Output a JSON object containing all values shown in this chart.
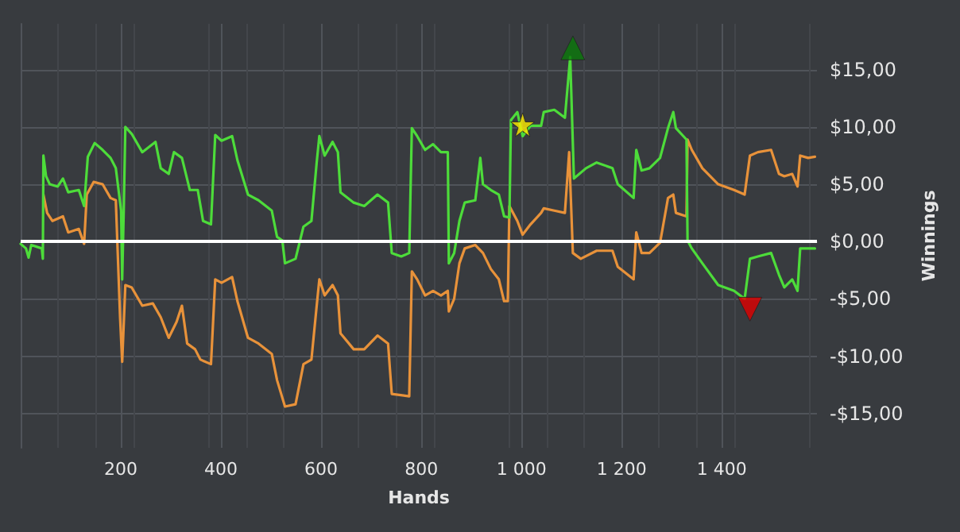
{
  "chart_data": {
    "type": "line",
    "xlabel": "Hands",
    "ylabel": "Winnings",
    "xlim": [
      0,
      1590
    ],
    "ylim": [
      -18,
      19
    ],
    "xticks": [
      200,
      400,
      600,
      800,
      {
        "value": 1000,
        "label": "1 000"
      },
      {
        "value": 1200,
        "label": "1 200"
      },
      {
        "value": 1400,
        "label": "1 400"
      }
    ],
    "yticks": [
      {
        "value": -15,
        "label": "-$15,00"
      },
      {
        "value": -10,
        "label": "-$10,00"
      },
      {
        "value": -5,
        "label": "-$5,00"
      },
      {
        "value": 0,
        "label": "$0,00"
      },
      {
        "value": 5,
        "label": "$5,00"
      },
      {
        "value": 10,
        "label": "$10,00"
      },
      {
        "value": 15,
        "label": "$15,00"
      }
    ],
    "grid": true,
    "marker": "none",
    "ref_lines": [
      {
        "axis": "y",
        "value": 0,
        "color": "#ffffff"
      }
    ],
    "series": [
      {
        "color": "#e8923a",
        "x": [
          45.4,
          52.8,
          63.3,
          84.4,
          95.0,
          116.1,
          126.7,
          132.0,
          145.7,
          163.6,
          179.5,
          190.0,
          198.5,
          202.7,
          209.0,
          221.7,
          242.8,
          263.9,
          279.7,
          295.6,
          311.4,
          322.0,
          332.5,
          348.3,
          358.9,
          380.0,
          388.5,
          401.1,
          422.2,
          432.8,
          453.9,
          475.0,
          501.4,
          512.0,
          527.8,
          548.9,
          564.7,
          580.6,
          591.1,
          596.4,
          607.0,
          622.8,
          633.4,
          638.6,
          665.0,
          686.1,
          712.5,
          733.6,
          741.0,
          775.9,
          781.1,
          791.7,
          807.5,
          823.4,
          839.2,
          852.9,
          855.0,
          865.6,
          876.1,
          886.7,
          907.8,
          923.1,
          938.9,
          954.8,
          965.3,
          972.7,
          975.9,
          991.7,
          1002.3,
          1018.1,
          1039.2,
          1044.5,
          1065.6,
          1086.7,
          1095.2,
          1102.6,
          1118.4,
          1150.1,
          1181.7,
          1192.3,
          1223.9,
          1229.2,
          1239.8,
          1255.6,
          1276.7,
          1292.6,
          1303.1,
          1308.4,
          1329.5,
          1331.6,
          1340.1,
          1361.2,
          1392.8,
          1424.5,
          1445.6,
          1456.2,
          1472.0,
          1498.4,
          1514.2,
          1524.8,
          1540.6,
          1551.2,
          1556.5,
          1572.3,
          1586
        ],
        "values": [
          4.1,
          2.5,
          1.8,
          2.2,
          0.8,
          1.1,
          -0.2,
          4.1,
          5.2,
          5.0,
          3.8,
          3.6,
          -6.6,
          -10.5,
          -3.8,
          -4.0,
          -5.6,
          -5.4,
          -6.6,
          -8.4,
          -7.0,
          -5.6,
          -8.9,
          -9.4,
          -10.3,
          -10.7,
          -3.3,
          -3.6,
          -3.1,
          -5.2,
          -8.4,
          -8.9,
          -9.8,
          -12.1,
          -14.4,
          -14.2,
          -10.7,
          -10.3,
          -5.6,
          -3.3,
          -4.7,
          -3.8,
          -4.7,
          -8.0,
          -9.4,
          -9.4,
          -8.2,
          -8.9,
          -13.3,
          -13.5,
          -2.6,
          -3.3,
          -4.7,
          -4.3,
          -4.7,
          -4.3,
          -6.1,
          -5.0,
          -1.9,
          -0.6,
          -0.3,
          -1.0,
          -2.4,
          -3.3,
          -5.2,
          -5.2,
          3.1,
          1.8,
          0.6,
          1.5,
          2.5,
          2.9,
          2.7,
          2.5,
          7.8,
          -1.0,
          -1.5,
          -0.8,
          -0.8,
          -2.2,
          -3.3,
          0.8,
          -1.0,
          -1.0,
          -0.1,
          3.8,
          4.1,
          2.5,
          2.2,
          8.9,
          8.0,
          6.4,
          5.0,
          4.5,
          4.1,
          7.5,
          7.8,
          8.0,
          5.9,
          5.7,
          5.9,
          4.8,
          7.5,
          7.3,
          7.4
        ]
      },
      {
        "color": "#4ddc3a",
        "x": [
          0,
          10.6,
          15.8,
          21.1,
          42.2,
          44.3,
          45.4,
          50.7,
          58.1,
          73.9,
          84.4,
          95.0,
          116.1,
          126.7,
          134.1,
          147.8,
          163.6,
          179.5,
          190.0,
          200.6,
          202.7,
          205.8,
          209.0,
          221.7,
          242.8,
          269.2,
          279.7,
          295.6,
          306.1,
          322.0,
          337.8,
          353.6,
          364.2,
          380.0,
          388.5,
          401.1,
          422.2,
          432.8,
          453.9,
          475.0,
          501.4,
          512.0,
          522.5,
          527.8,
          548.9,
          564.7,
          580.6,
          591.1,
          596.4,
          607.0,
          622.8,
          633.4,
          638.6,
          665.0,
          686.1,
          712.5,
          733.6,
          741.0,
          760.0,
          775.9,
          781.1,
          791.7,
          807.5,
          823.4,
          839.2,
          852.9,
          855.0,
          865.6,
          876.1,
          886.7,
          907.8,
          917.8,
          923.1,
          938.9,
          954.8,
          965.3,
          975.9,
          979.0,
          991.7,
          1002.3,
          1018.1,
          1039.2,
          1044.5,
          1065.6,
          1086.7,
          1097.3,
          1099.4,
          1104.7,
          1128.9,
          1150.1,
          1181.7,
          1192.3,
          1223.9,
          1229.2,
          1239.8,
          1255.6,
          1276.7,
          1292.6,
          1303.1,
          1308.4,
          1329.5,
          1331.6,
          1340.1,
          1361.2,
          1392.8,
          1424.5,
          1445.6,
          1456.2,
          1472.0,
          1498.4,
          1514.2,
          1524.8,
          1540.6,
          1551.2,
          1556.5,
          1572.3,
          1586
        ],
        "values": [
          -0.2,
          -0.6,
          -1.4,
          -0.3,
          -0.6,
          -1.5,
          7.5,
          5.7,
          5.0,
          4.8,
          5.5,
          4.3,
          4.5,
          3.1,
          7.4,
          8.6,
          8.0,
          7.3,
          6.4,
          2.7,
          -3.3,
          2.7,
          10.0,
          9.4,
          7.8,
          8.7,
          6.4,
          5.9,
          7.8,
          7.3,
          4.5,
          4.5,
          1.8,
          1.5,
          9.3,
          8.8,
          9.2,
          7.1,
          4.1,
          3.6,
          2.7,
          0.4,
          0.1,
          -1.9,
          -1.5,
          1.3,
          1.8,
          6.9,
          9.2,
          7.5,
          8.7,
          7.8,
          4.3,
          3.4,
          3.1,
          4.1,
          3.4,
          -1.0,
          -1.3,
          -1.0,
          9.9,
          9.2,
          8.0,
          8.5,
          7.8,
          7.8,
          -1.9,
          -1.0,
          1.8,
          3.4,
          3.6,
          7.3,
          5.0,
          4.5,
          4.1,
          2.2,
          2.1,
          10.6,
          11.3,
          9.2,
          10.1,
          10.1,
          11.3,
          11.5,
          10.8,
          16.1,
          16.1,
          5.5,
          6.4,
          6.9,
          6.4,
          5.0,
          3.8,
          8.0,
          6.2,
          6.4,
          7.3,
          9.9,
          11.3,
          9.9,
          8.9,
          0.1,
          -0.6,
          -1.9,
          -3.8,
          -4.3,
          -5.0,
          -1.5,
          -1.3,
          -1.0,
          -2.9,
          -4.0,
          -3.3,
          -4.3,
          -0.6,
          -0.6,
          -0.6
        ]
      },
      {
        "type": "scatter",
        "marker": "star",
        "color": "#ffee00",
        "x": [
          1002.3
        ],
        "values": [
          10.2
        ]
      },
      {
        "type": "scatter",
        "marker": "triangle",
        "color": "#0a7a0a",
        "x": [
          1102.6
        ],
        "values": [
          16.9
        ]
      },
      {
        "type": "scatter",
        "marker": "triangle-down",
        "color": "#e00000",
        "x": [
          1456.2
        ],
        "values": [
          -5.9
        ]
      }
    ]
  }
}
